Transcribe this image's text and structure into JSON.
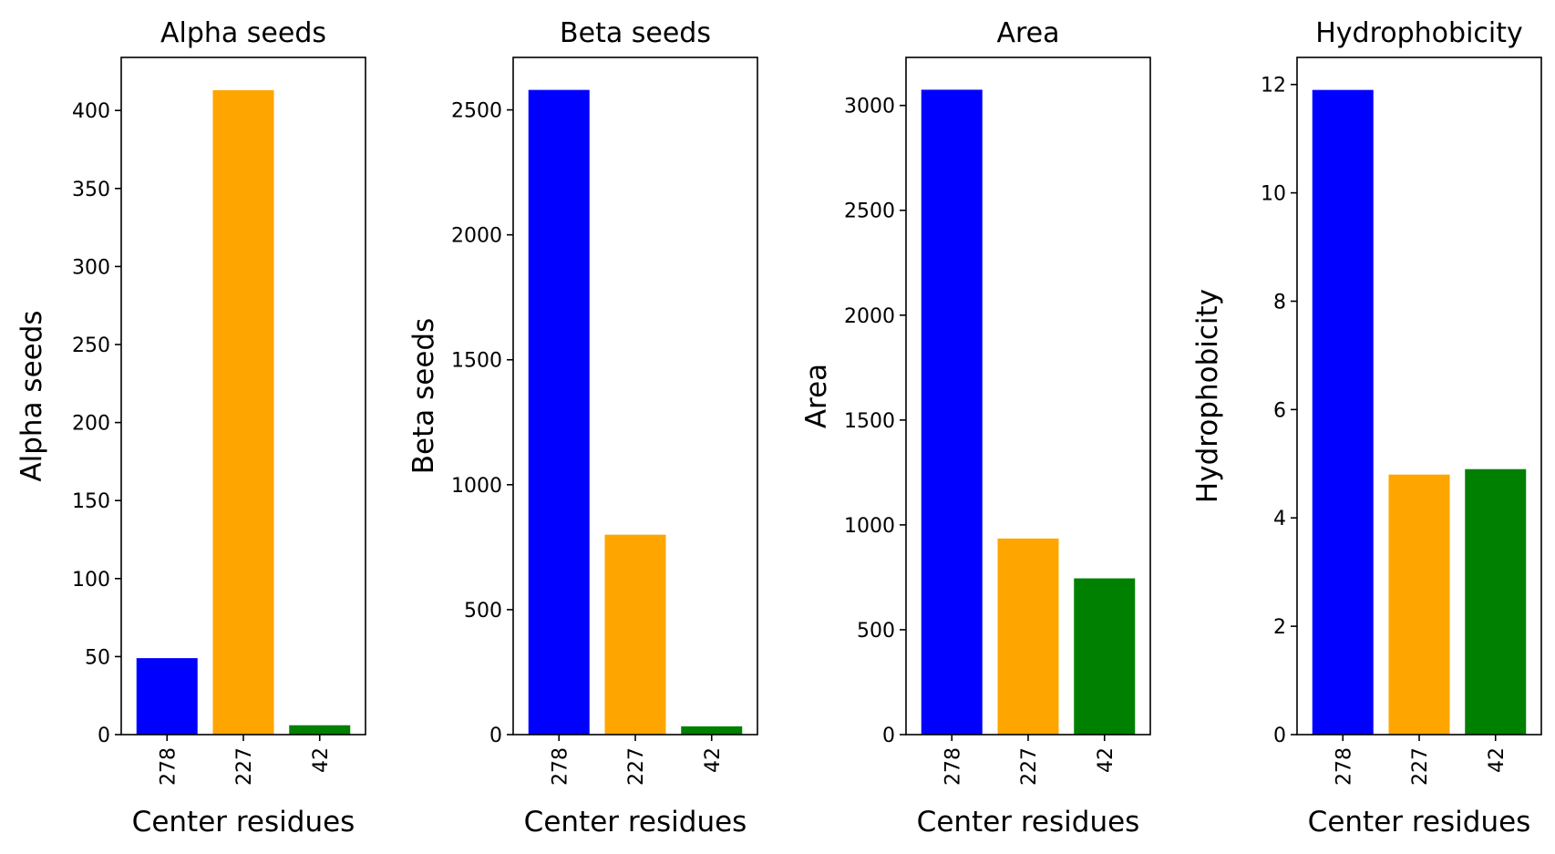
{
  "chart_data": [
    {
      "type": "bar",
      "title": "Alpha seeds",
      "xlabel": "Center residues",
      "ylabel": "Alpha seeds",
      "categories": [
        "278",
        "227",
        "42"
      ],
      "values": [
        49,
        413,
        6
      ],
      "colors": [
        "#0000ff",
        "#ffa500",
        "#008000"
      ],
      "ylim": [
        0,
        434
      ],
      "yticks": [
        0,
        50,
        100,
        150,
        200,
        250,
        300,
        350,
        400
      ],
      "grid": false
    },
    {
      "type": "bar",
      "title": "Beta seeds",
      "xlabel": "Center residues",
      "ylabel": "Beta seeds",
      "categories": [
        "278",
        "227",
        "42"
      ],
      "values": [
        2580,
        800,
        33
      ],
      "colors": [
        "#0000ff",
        "#ffa500",
        "#008000"
      ],
      "ylim": [
        0,
        2710
      ],
      "yticks": [
        0,
        500,
        1000,
        1500,
        2000,
        2500
      ],
      "grid": false
    },
    {
      "type": "bar",
      "title": "Area",
      "xlabel": "Center residues",
      "ylabel": "Area",
      "categories": [
        "278",
        "227",
        "42"
      ],
      "values": [
        3075,
        935,
        745
      ],
      "colors": [
        "#0000ff",
        "#ffa500",
        "#008000"
      ],
      "ylim": [
        0,
        3229
      ],
      "yticks": [
        0,
        500,
        1000,
        1500,
        2000,
        2500,
        3000
      ],
      "grid": false
    },
    {
      "type": "bar",
      "title": "Hydrophobicity",
      "xlabel": "Center residues",
      "ylabel": "Hydrophobicity",
      "categories": [
        "278",
        "227",
        "42"
      ],
      "values": [
        11.9,
        4.8,
        4.9
      ],
      "colors": [
        "#0000ff",
        "#ffa500",
        "#008000"
      ],
      "ylim": [
        0,
        12.5
      ],
      "yticks": [
        0,
        2,
        4,
        6,
        8,
        10,
        12
      ],
      "grid": false
    }
  ]
}
